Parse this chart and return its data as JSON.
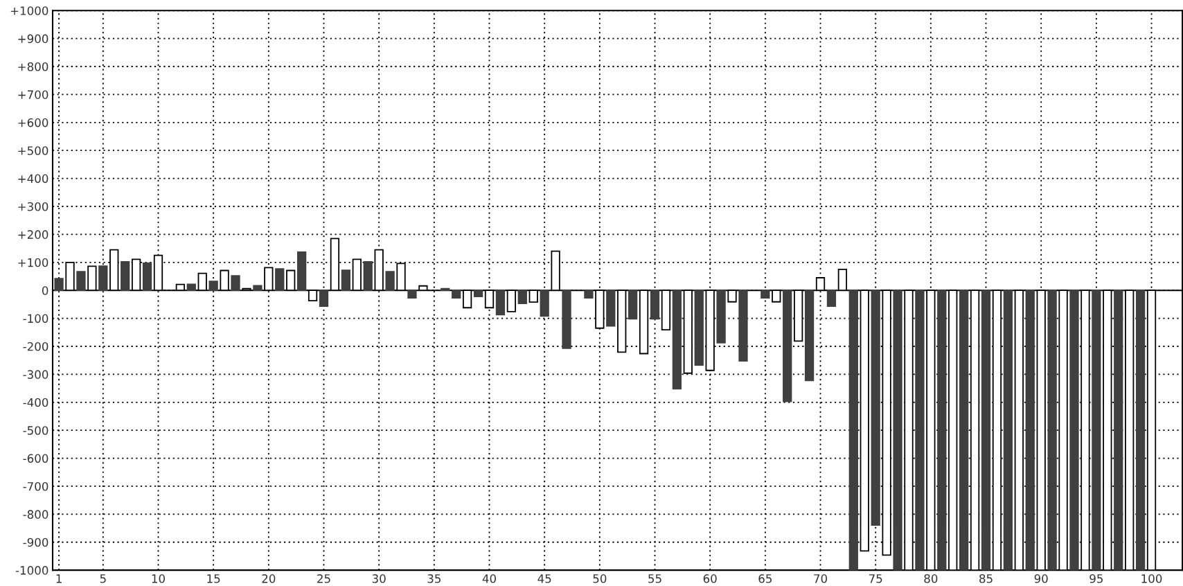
{
  "chart_data": {
    "type": "bar",
    "x": [
      1,
      2,
      3,
      4,
      5,
      6,
      7,
      8,
      9,
      10,
      11,
      12,
      13,
      14,
      15,
      16,
      17,
      18,
      19,
      20,
      21,
      22,
      23,
      24,
      25,
      26,
      27,
      28,
      29,
      30,
      31,
      32,
      33,
      34,
      35,
      36,
      37,
      38,
      39,
      40,
      41,
      42,
      43,
      44,
      45,
      46,
      47,
      48,
      49,
      50,
      51,
      52,
      53,
      54,
      55,
      56,
      57,
      58,
      59,
      60,
      61,
      62,
      63,
      64,
      65,
      66,
      67,
      68,
      69,
      70,
      71,
      72,
      73,
      74,
      75,
      76,
      77,
      78,
      79,
      80,
      81,
      82,
      83,
      84,
      85,
      86,
      87,
      88,
      89,
      90,
      91,
      92,
      93,
      94,
      95,
      96,
      97,
      98,
      99,
      100
    ],
    "values": [
      42,
      100,
      67,
      86,
      87,
      145,
      102,
      111,
      97,
      125,
      0,
      21,
      22,
      61,
      32,
      71,
      52,
      6,
      17,
      81,
      77,
      71,
      137,
      -37,
      -57,
      185,
      72,
      111,
      102,
      145,
      67,
      96,
      -27,
      16,
      0,
      6,
      -27,
      -62,
      -22,
      -62,
      -87,
      -76,
      -47,
      -42,
      -92,
      140,
      -207,
      0,
      -27,
      -135,
      -127,
      -221,
      -102,
      -226,
      -102,
      -141,
      -352,
      -296,
      -267,
      -286,
      -187,
      -41,
      -252,
      0,
      -27,
      -41,
      -397,
      -181,
      -322,
      45,
      -57,
      75,
      -1000,
      -931,
      -839,
      -946,
      -1000,
      -1000,
      -1000,
      -1000,
      -1000,
      -1000,
      -1000,
      -1000,
      -1000,
      -1000,
      -1000,
      -1000,
      -1000,
      -1000,
      -1000,
      -1000,
      -1000,
      -1000,
      -1000,
      -1000,
      -1000,
      -1000,
      -1000,
      -1000
    ],
    "colors": [
      "#404040",
      "#ffffff",
      "#404040",
      "#ffffff",
      "#404040",
      "#ffffff",
      "#404040",
      "#ffffff",
      "#404040",
      "#ffffff",
      "#404040",
      "#ffffff",
      "#404040",
      "#ffffff",
      "#404040",
      "#ffffff",
      "#404040",
      "#ffffff",
      "#404040",
      "#ffffff",
      "#404040",
      "#ffffff",
      "#404040",
      "#ffffff",
      "#404040",
      "#ffffff",
      "#404040",
      "#ffffff",
      "#404040",
      "#ffffff",
      "#404040",
      "#ffffff",
      "#404040",
      "#ffffff",
      "#ffffff",
      "#404040",
      "#404040",
      "#ffffff",
      "#404040",
      "#ffffff",
      "#404040",
      "#ffffff",
      "#404040",
      "#ffffff",
      "#404040",
      "#ffffff",
      "#404040",
      "#ffffff",
      "#404040",
      "#ffffff",
      "#404040",
      "#ffffff",
      "#404040",
      "#ffffff",
      "#404040",
      "#ffffff",
      "#404040",
      "#ffffff",
      "#404040",
      "#ffffff",
      "#404040",
      "#ffffff",
      "#404040",
      "#ffffff",
      "#404040",
      "#ffffff",
      "#404040",
      "#ffffff",
      "#404040",
      "#ffffff",
      "#404040",
      "#ffffff",
      "#404040",
      "#ffffff",
      "#404040",
      "#ffffff",
      "#404040",
      "#ffffff",
      "#404040",
      "#ffffff",
      "#404040",
      "#ffffff",
      "#404040",
      "#ffffff",
      "#404040",
      "#ffffff",
      "#404040",
      "#ffffff",
      "#404040",
      "#ffffff",
      "#404040",
      "#ffffff",
      "#404040",
      "#ffffff",
      "#404040",
      "#ffffff",
      "#404040",
      "#ffffff",
      "#404040",
      "#ffffff"
    ],
    "xlim": [
      0.43,
      102.8
    ],
    "xticks": [
      1,
      5,
      10,
      15,
      20,
      25,
      30,
      35,
      40,
      45,
      50,
      55,
      60,
      65,
      70,
      75,
      80,
      85,
      90,
      95,
      100
    ],
    "ylim": [
      -1000,
      1000
    ],
    "yticks": [
      -1000,
      -900,
      -800,
      -700,
      -600,
      -500,
      -400,
      -300,
      -200,
      -100,
      0,
      {
        "value": 100,
        "label": "+100"
      },
      {
        "value": 200,
        "label": "+200"
      },
      {
        "value": 300,
        "label": "+300"
      },
      {
        "value": 400,
        "label": "+400"
      },
      {
        "value": 500,
        "label": "+500"
      },
      {
        "value": 600,
        "label": "+600"
      },
      {
        "value": 700,
        "label": "+700"
      },
      {
        "value": 800,
        "label": "+800"
      },
      {
        "value": 900,
        "label": "+900"
      },
      {
        "value": 1000,
        "label": "+1000"
      }
    ],
    "grid": true,
    "legend": false
  }
}
